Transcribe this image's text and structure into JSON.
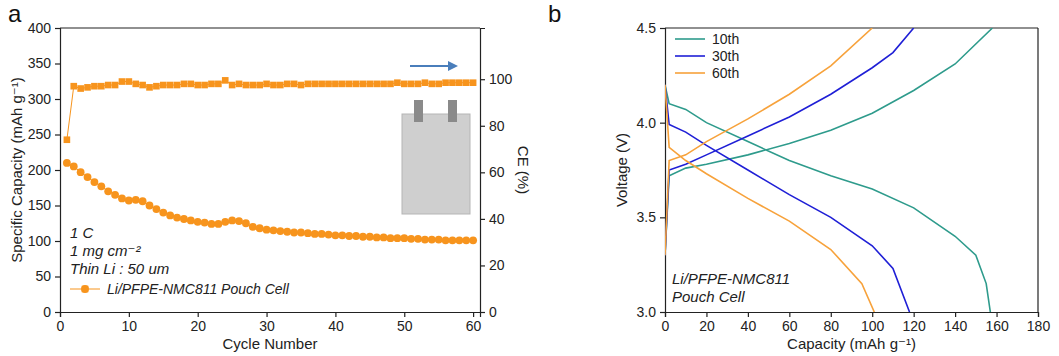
{
  "chart_data": [
    {
      "panel": "a",
      "type": "line",
      "xlabel": "Cycle Number",
      "ylabel": "Specific Capacity (mAh g⁻¹)",
      "y2label": "CE (%)",
      "annotations": [
        "1 C",
        "1 mg cm⁻²",
        "Thin Li : 50 um"
      ],
      "legend": "lower left",
      "xlim": [
        0,
        61
      ],
      "xticks": [
        0,
        10,
        20,
        30,
        40,
        50,
        60
      ],
      "ylim": [
        0,
        400
      ],
      "yticks": [
        0,
        50,
        100,
        150,
        200,
        250,
        300,
        350,
        400
      ],
      "y2lim": [
        0,
        122
      ],
      "y2ticks": [
        0,
        20,
        40,
        60,
        80,
        100
      ],
      "x": [
        1,
        2,
        3,
        4,
        5,
        6,
        7,
        8,
        9,
        10,
        11,
        12,
        13,
        14,
        15,
        16,
        17,
        18,
        19,
        20,
        21,
        22,
        23,
        24,
        25,
        26,
        27,
        28,
        29,
        30,
        31,
        32,
        33,
        34,
        35,
        36,
        37,
        38,
        39,
        40,
        41,
        42,
        43,
        44,
        45,
        46,
        47,
        48,
        49,
        50,
        51,
        52,
        53,
        54,
        55,
        56,
        57,
        58,
        59,
        60
      ],
      "series": [
        {
          "name": "Li/PFPE-NMC811 Pouch Cell",
          "color": "#f7941d",
          "marker": "circle",
          "line_style": "solid",
          "values": [
            210,
            205,
            197,
            190,
            183,
            177,
            170,
            165,
            160,
            157,
            158,
            156,
            150,
            145,
            140,
            136,
            133,
            131,
            129,
            127,
            126,
            124,
            124,
            127,
            129,
            128,
            125,
            120,
            118,
            116,
            115,
            114,
            113,
            112,
            112,
            111,
            110,
            110,
            109,
            108,
            108,
            107,
            107,
            106,
            106,
            105,
            105,
            104,
            104,
            104,
            103,
            103,
            102,
            102,
            102,
            101,
            101,
            101,
            101,
            101
          ]
        },
        {
          "color": "#f7941d",
          "marker": "square",
          "line_style": "solid",
          "axis": "y2",
          "values": [
            74,
            97,
            96,
            96.5,
            97,
            97,
            97.5,
            97.5,
            99,
            99,
            98,
            97.5,
            96.5,
            97,
            97.5,
            97.5,
            97.5,
            98,
            98,
            97.5,
            97.5,
            98,
            98,
            99.5,
            97.5,
            98,
            97.5,
            97.5,
            97.5,
            98,
            97.5,
            97.5,
            98,
            98,
            97.5,
            98,
            98,
            98,
            98,
            98,
            98,
            98,
            98,
            98,
            98,
            98,
            98,
            98,
            98.5,
            98,
            98,
            98,
            98.5,
            98,
            98,
            98.5,
            98.5,
            98.5,
            98.5,
            98.5
          ]
        }
      ]
    },
    {
      "panel": "b",
      "type": "line",
      "xlabel": "Capacity (mAh g⁻¹)",
      "ylabel": "Voltage (V)",
      "annotations": [
        "Li/PFPE-NMC811",
        "Pouch Cell"
      ],
      "legend": "upper left",
      "xlim": [
        0,
        180
      ],
      "xticks": [
        0,
        20,
        40,
        60,
        80,
        100,
        120,
        140,
        160,
        180
      ],
      "ylim": [
        3.0,
        4.5
      ],
      "yticks": [
        {
          "value": 3.0,
          "label": "3.0"
        },
        3.5,
        {
          "value": 4.0,
          "label": "4.0"
        },
        4.5
      ],
      "series": [
        {
          "name": "10th",
          "color": "#2e9b8c",
          "x": [
            0,
            2,
            10,
            20,
            40,
            60,
            80,
            100,
            120,
            140,
            158,
            null,
            0,
            2,
            10,
            20,
            40,
            60,
            80,
            100,
            120,
            140,
            150,
            155,
            157
          ],
          "values": [
            3.3,
            3.72,
            3.76,
            3.78,
            3.83,
            3.89,
            3.96,
            4.05,
            4.17,
            4.31,
            4.5,
            null,
            4.2,
            4.1,
            4.07,
            4.0,
            3.9,
            3.8,
            3.72,
            3.65,
            3.55,
            3.4,
            3.3,
            3.15,
            3.0
          ]
        },
        {
          "name": "30th",
          "color": "#1f1fd6",
          "x": [
            0,
            2,
            10,
            20,
            40,
            60,
            80,
            100,
            110,
            120,
            null,
            0,
            2,
            10,
            20,
            40,
            60,
            80,
            100,
            110,
            118
          ],
          "values": [
            3.3,
            3.75,
            3.78,
            3.83,
            3.93,
            4.03,
            4.15,
            4.29,
            4.37,
            4.5,
            null,
            4.2,
            3.99,
            3.95,
            3.88,
            3.75,
            3.62,
            3.5,
            3.35,
            3.23,
            3.0
          ]
        },
        {
          "name": "60th",
          "color": "#f7a23b",
          "x": [
            0,
            2,
            10,
            20,
            40,
            60,
            80,
            100,
            null,
            0,
            2,
            10,
            20,
            40,
            60,
            80,
            95,
            101
          ],
          "values": [
            3.3,
            3.8,
            3.83,
            3.9,
            4.02,
            4.15,
            4.3,
            4.5,
            null,
            4.2,
            3.87,
            3.8,
            3.73,
            3.6,
            3.48,
            3.33,
            3.15,
            3.0
          ]
        }
      ]
    }
  ]
}
